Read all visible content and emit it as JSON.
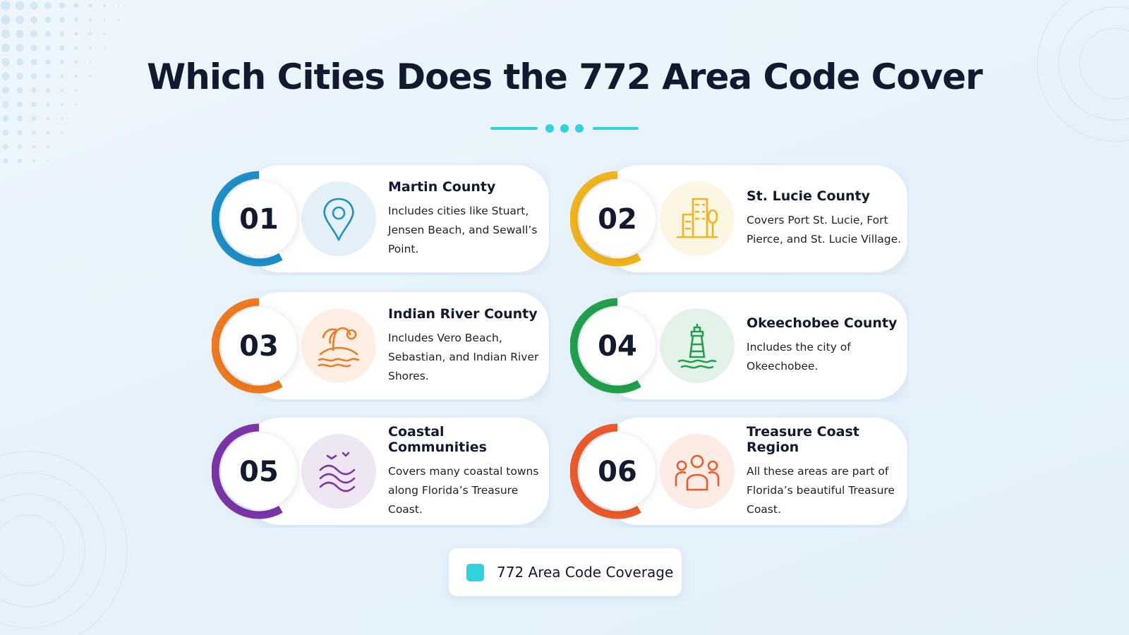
{
  "title": "Which Cities Does the 772 Area Code Cover",
  "items": [
    {
      "number": "01",
      "title": "Martin County",
      "description": "Includes cities like Stuart, Jensen Beach, and Sewall’s Point.",
      "color": "#1e8fc8"
    },
    {
      "number": "02",
      "title": "St. Lucie County",
      "description": "Covers Port St. Lucie, Fort Pierce, and St. Lucie Village.",
      "color": "#f2b41c"
    },
    {
      "number": "03",
      "title": "Indian River County",
      "description": "Includes Vero Beach, Sebastian, and Indian River Shores.",
      "color": "#f07a1e"
    },
    {
      "number": "04",
      "title": "Okeechobee County",
      "description": "Includes the city of Okeechobee.",
      "color": "#22a04b"
    },
    {
      "number": "05",
      "title": "Coastal Communities",
      "description": "Covers many coastal towns along Florida’s Treasure Coast.",
      "color": "#7b35a8"
    },
    {
      "number": "06",
      "title": "Treasure Coast Region",
      "description": "All these areas are part of Florida’s beautiful Treasure Coast.",
      "color": "#ec5a2a"
    }
  ],
  "legend": {
    "label": "772 Area Code Coverage",
    "color": "#2ed3df"
  }
}
